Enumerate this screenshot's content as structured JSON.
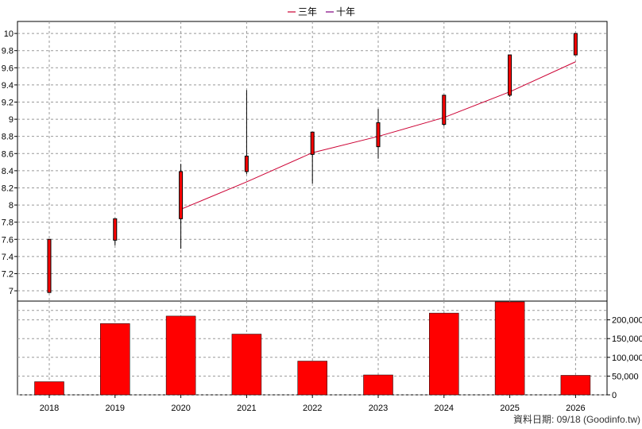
{
  "legend": [
    {
      "name": "三年",
      "color": "#cc0033"
    },
    {
      "name": "十年",
      "color": "#800080"
    }
  ],
  "credit": "資料日期: 09/18 (Goodinfo.tw)",
  "chart_data": [
    {
      "type": "candlestick",
      "categories": [
        "2018",
        "2019",
        "2020",
        "2021",
        "2022",
        "2023",
        "2024",
        "2025",
        "2026"
      ],
      "ylim": [
        6.88,
        10.14
      ],
      "yticks": [
        7,
        7.2,
        7.4,
        7.6,
        7.8,
        8,
        8.2,
        8.4,
        8.6,
        8.8,
        9,
        9.2,
        9.4,
        9.6,
        9.8,
        10
      ],
      "grid": true,
      "legend_position": "top-center",
      "candle_color": "#ff0000",
      "candles": [
        {
          "low": 6.98,
          "body_low": 6.98,
          "body_high": 7.6,
          "high": 7.6
        },
        {
          "low": 7.53,
          "body_low": 7.59,
          "body_high": 7.84,
          "high": 7.84
        },
        {
          "low": 7.49,
          "body_low": 7.84,
          "body_high": 8.39,
          "high": 8.48
        },
        {
          "low": 8.36,
          "body_low": 8.39,
          "body_high": 8.57,
          "high": 9.34
        },
        {
          "low": 8.25,
          "body_low": 8.59,
          "body_high": 8.85,
          "high": 8.85
        },
        {
          "low": 8.54,
          "body_low": 8.68,
          "body_high": 8.96,
          "high": 9.12
        },
        {
          "low": 8.92,
          "body_low": 8.94,
          "body_high": 9.28,
          "high": 9.28
        },
        {
          "low": 9.26,
          "body_low": 9.28,
          "body_high": 9.75,
          "high": 9.75
        },
        {
          "low": 9.75,
          "body_low": 9.75,
          "body_high": 10.0,
          "high": 10.0
        }
      ],
      "series": [
        {
          "name": "三年",
          "color": "#cc0033",
          "values": [
            null,
            null,
            7.95,
            8.27,
            8.61,
            8.8,
            9.02,
            9.32,
            9.67
          ]
        }
      ]
    },
    {
      "type": "bar",
      "categories": [
        "2018",
        "2019",
        "2020",
        "2021",
        "2022",
        "2023",
        "2024",
        "2025",
        "2026"
      ],
      "values": [
        35000,
        190000,
        210000,
        162000,
        90000,
        53000,
        218000,
        248000,
        52000
      ],
      "ylim": [
        0,
        250000
      ],
      "yticks": [
        0,
        50000,
        100000,
        150000,
        200000
      ],
      "ytick_labels": [
        "0",
        "50,000",
        "100,000",
        "150,000",
        "200,000"
      ],
      "grid": true,
      "bar_color": "#ff0000"
    }
  ]
}
